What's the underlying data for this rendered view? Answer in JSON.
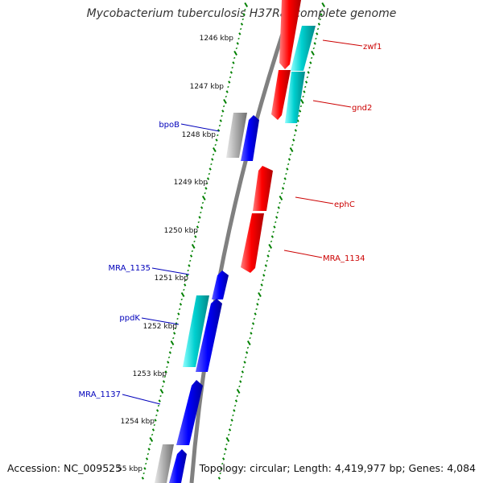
{
  "header": {
    "title": "Mycobacterium tuberculosis H37Ra, complete genome"
  },
  "footer": {
    "accession": "Accession: NC_009525",
    "summary": "Topology: circular; Length: 4,419,977 bp; Genes: 4,084"
  },
  "colors": {
    "red_gene": "#ff0000",
    "blue_gene": "#0000ff",
    "cyan_gene": "#00c8c8",
    "gray_gene": "#a0a0a0",
    "backbone": "#808080",
    "tick_green": "#008000",
    "label_red": "#cc0000",
    "label_blue": "#0000bb"
  },
  "map": {
    "scale_labels": [
      "1246 kbp",
      "1247 kbp",
      "1248 kbp",
      "1249 kbp",
      "1250 kbp",
      "1251 kbp",
      "1252 kbp",
      "1253 kbp",
      "1254 kbp",
      "55 kbp"
    ],
    "genes": [
      {
        "label": "zwf1",
        "strand": "forward",
        "color": "red"
      },
      {
        "label": "",
        "strand": "forward",
        "color": "cyan"
      },
      {
        "label": "gnd2",
        "strand": "forward",
        "color": "red"
      },
      {
        "label": "",
        "strand": "forward",
        "color": "cyan"
      },
      {
        "label": "bpoB",
        "strand": "reverse",
        "color": "blue"
      },
      {
        "label": "",
        "strand": "reverse",
        "color": "gray"
      },
      {
        "label": "ephC",
        "strand": "forward",
        "color": "red"
      },
      {
        "label": "MRA_1134",
        "strand": "forward",
        "color": "red"
      },
      {
        "label": "MRA_1135",
        "strand": "reverse",
        "color": "blue"
      },
      {
        "label": "ppdK",
        "strand": "reverse",
        "color": "blue"
      },
      {
        "label": "",
        "strand": "reverse",
        "color": "cyan"
      },
      {
        "label": "MRA_1137",
        "strand": "reverse",
        "color": "blue"
      },
      {
        "label": "",
        "strand": "reverse",
        "color": "gray"
      },
      {
        "label": "",
        "strand": "reverse",
        "color": "blue"
      }
    ]
  }
}
